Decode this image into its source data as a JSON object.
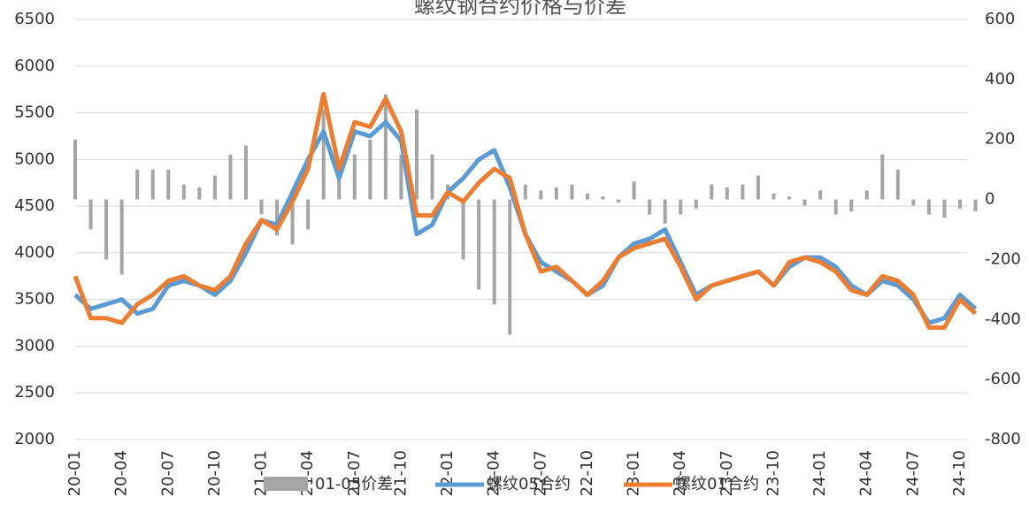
{
  "chart_data": {
    "type": "bar-line",
    "title": "螺纹钢合约价格与价差",
    "categories": [
      "20-01",
      null,
      null,
      "20-04",
      null,
      null,
      "20-07",
      null,
      null,
      "20-10",
      null,
      null,
      "21-01",
      null,
      null,
      "21-04",
      null,
      null,
      "21-07",
      null,
      null,
      "21-10",
      null,
      null,
      "22-01",
      null,
      null,
      "22-04",
      null,
      null,
      "22-07",
      null,
      null,
      "22-10",
      null,
      null,
      "23-01",
      null,
      null,
      "23-04",
      null,
      null,
      "23-07",
      null,
      null,
      "23-10",
      null,
      null,
      "24-01",
      null,
      null,
      "24-04",
      null,
      null,
      "24-07",
      null,
      null,
      "24-10",
      null
    ],
    "series": [
      {
        "name": "01-05价差",
        "type": "bar",
        "axis": "y2",
        "color": "#a5a5a5",
        "values": [
          200,
          -100,
          -200,
          -250,
          100,
          100,
          100,
          50,
          40,
          80,
          150,
          180,
          -50,
          -120,
          -150,
          -100,
          300,
          100,
          150,
          200,
          350,
          150,
          300,
          150,
          50,
          -200,
          -300,
          -350,
          -450,
          50,
          30,
          40,
          50,
          20,
          10,
          -10,
          60,
          -50,
          -80,
          -50,
          -30,
          50,
          40,
          50,
          80,
          20,
          10,
          -20,
          30,
          -50,
          -40,
          30,
          150,
          100,
          -20,
          -50,
          -60,
          -30,
          -40
        ]
      },
      {
        "name": "螺纹05合约",
        "type": "line",
        "color": "#5b9bd5",
        "values": [
          3550,
          3400,
          3450,
          3500,
          3350,
          3400,
          3650,
          3700,
          3650,
          3550,
          3700,
          4000,
          4350,
          4300,
          4650,
          5000,
          5300,
          4800,
          5300,
          5250,
          5400,
          5200,
          4200,
          4300,
          4650,
          4800,
          5000,
          5100,
          4700,
          4200,
          3900,
          3800,
          3700,
          3550,
          3650,
          3950,
          4100,
          4150,
          4250,
          3900,
          3550,
          3650,
          3700,
          3750,
          3800,
          3650,
          3850,
          3950,
          3950,
          3850,
          3650,
          3550,
          3700,
          3650,
          3500,
          3250,
          3300,
          3550,
          3400
        ]
      },
      {
        "name": "螺纹01合约",
        "type": "line",
        "color": "#ed7d31",
        "values": [
          3750,
          3300,
          3300,
          3250,
          3450,
          3550,
          3700,
          3750,
          3650,
          3600,
          3750,
          4100,
          4350,
          4250,
          4550,
          4900,
          5700,
          4900,
          5400,
          5350,
          5650,
          5300,
          4400,
          4400,
          4650,
          4550,
          4750,
          4900,
          4800,
          4200,
          3800,
          3850,
          3700,
          3550,
          3700,
          3950,
          4050,
          4100,
          4150,
          3850,
          3500,
          3650,
          3700,
          3750,
          3800,
          3650,
          3900,
          3950,
          3900,
          3800,
          3600,
          3550,
          3750,
          3700,
          3550,
          3200,
          3200,
          3500,
          3350
        ]
      }
    ],
    "ylim": [
      2000,
      6500
    ],
    "yticks": [
      2000,
      2500,
      3000,
      3500,
      4000,
      4500,
      5000,
      5500,
      6000,
      6500
    ],
    "y2lim": [
      -800,
      600
    ],
    "y2ticks": [
      -800,
      -600,
      -400,
      -200,
      0,
      200,
      400,
      600
    ],
    "grid": true,
    "legend": "bottom"
  }
}
